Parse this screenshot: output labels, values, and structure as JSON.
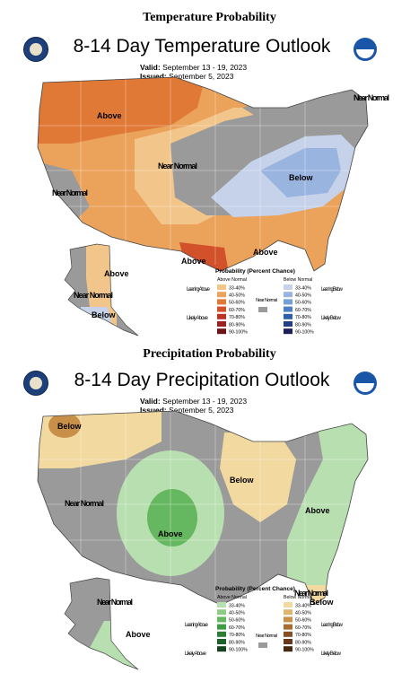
{
  "temperature": {
    "section_title": "Temperature Probability",
    "map_title": "8-14 Day Temperature Outlook",
    "valid_label": "Valid:",
    "valid_value": "September 13 - 19, 2023",
    "issued_label": "Issued:",
    "issued_value": "September 5, 2023",
    "regions": {
      "above_west": "Above",
      "near_normal_central": "Near Normal",
      "below_east": "Below",
      "near_normal_ne": "Near Normal",
      "near_normal_ca": "Near Normal",
      "above_tx": "Above",
      "above_gulf": "Above",
      "ak_above": "Above",
      "ak_near_normal": "Near Normal",
      "ak_below": "Below"
    },
    "legend": {
      "title": "Probability (Percent Chance)",
      "left_header": "Above Normal",
      "right_header": "Below Normal",
      "leaning_left": "Leaning Above",
      "likely_left": "Likely Above",
      "leaning_right": "Leaning Below",
      "likely_right": "Likely Below",
      "near_normal": "Near Normal",
      "ranges": [
        "33-40%",
        "40-50%",
        "50-60%",
        "60-70%",
        "70-80%",
        "80-90%",
        "90-100%"
      ],
      "above_colors": [
        "#f2c58a",
        "#eba25a",
        "#e07836",
        "#d2502a",
        "#b83226",
        "#9b2222",
        "#6e1418"
      ],
      "below_colors": [
        "#c5d2ea",
        "#9ab4e0",
        "#74a0d6",
        "#4b80c5",
        "#2e5fa8",
        "#243f86",
        "#1c1f5a"
      ],
      "near_color": "#9a9a9a"
    }
  },
  "precipitation": {
    "section_title": "Precipitation Probability",
    "map_title": "8-14 Day Precipitation Outlook",
    "valid_label": "Valid:",
    "valid_value": "September 13 - 19, 2023",
    "issued_label": "Issued:",
    "issued_value": "September 5, 2023",
    "regions": {
      "below_pnw": "Below",
      "near_normal_west": "Near Normal",
      "above_plains": "Above",
      "below_midwest": "Below",
      "above_east": "Above",
      "below_fl": "Below",
      "near_normal_gulf": "Near Normal",
      "ak_near_normal": "Near Normal",
      "ak_above": "Above"
    },
    "legend": {
      "title": "Probability (Percent Chance)",
      "left_header": "Above Normal",
      "right_header": "Below Normal",
      "leaning_left": "Leaning Above",
      "likely_left": "Likely Above",
      "leaning_right": "Leaning Below",
      "likely_right": "Likely Below",
      "near_normal": "Near Normal",
      "ranges": [
        "33-40%",
        "40-50%",
        "50-60%",
        "60-70%",
        "70-80%",
        "80-90%",
        "90-100%"
      ],
      "above_colors": [
        "#b8dfb0",
        "#8fcc86",
        "#66b860",
        "#3f9c44",
        "#2b7d36",
        "#1e602a",
        "#12441e"
      ],
      "below_colors": [
        "#f2d9a0",
        "#dfb470",
        "#c88f48",
        "#a86c30",
        "#875024",
        "#653a1a",
        "#452810"
      ],
      "near_color": "#9a9a9a"
    }
  }
}
